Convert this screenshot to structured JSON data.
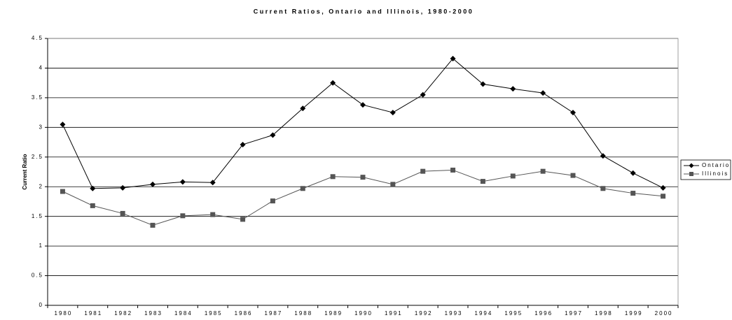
{
  "chart_data": {
    "type": "line",
    "title": "Current Ratios, Ontario and Illinois, 1980-2000",
    "y_label": "Current Ratio",
    "categories": [
      "1980",
      "1981",
      "1982",
      "1983",
      "1984",
      "1985",
      "1986",
      "1987",
      "1988",
      "1989",
      "1990",
      "1991",
      "1992",
      "1993",
      "1994",
      "1995",
      "1996",
      "1997",
      "1998",
      "1999",
      "2000"
    ],
    "series": [
      {
        "name": "Ontario",
        "color": "#000000",
        "marker": "diamond",
        "values": [
          3.05,
          1.97,
          1.98,
          2.04,
          2.08,
          2.07,
          2.71,
          2.87,
          3.32,
          3.75,
          3.38,
          3.25,
          3.55,
          4.16,
          3.73,
          3.65,
          3.58,
          3.25,
          2.52,
          2.23,
          1.98
        ]
      },
      {
        "name": "Illinois",
        "color": "#555555",
        "marker": "square",
        "values": [
          1.92,
          1.68,
          1.55,
          1.35,
          1.51,
          1.53,
          1.45,
          1.76,
          1.97,
          2.17,
          2.16,
          2.04,
          2.26,
          2.28,
          2.09,
          2.18,
          2.26,
          2.19,
          1.97,
          1.89,
          1.84
        ]
      }
    ],
    "ylim": [
      0,
      4.5
    ],
    "yticks": [
      0,
      0.5,
      1,
      1.5,
      2,
      2.5,
      3,
      3.5,
      4,
      4.5
    ],
    "grid": true,
    "legend": "right"
  }
}
